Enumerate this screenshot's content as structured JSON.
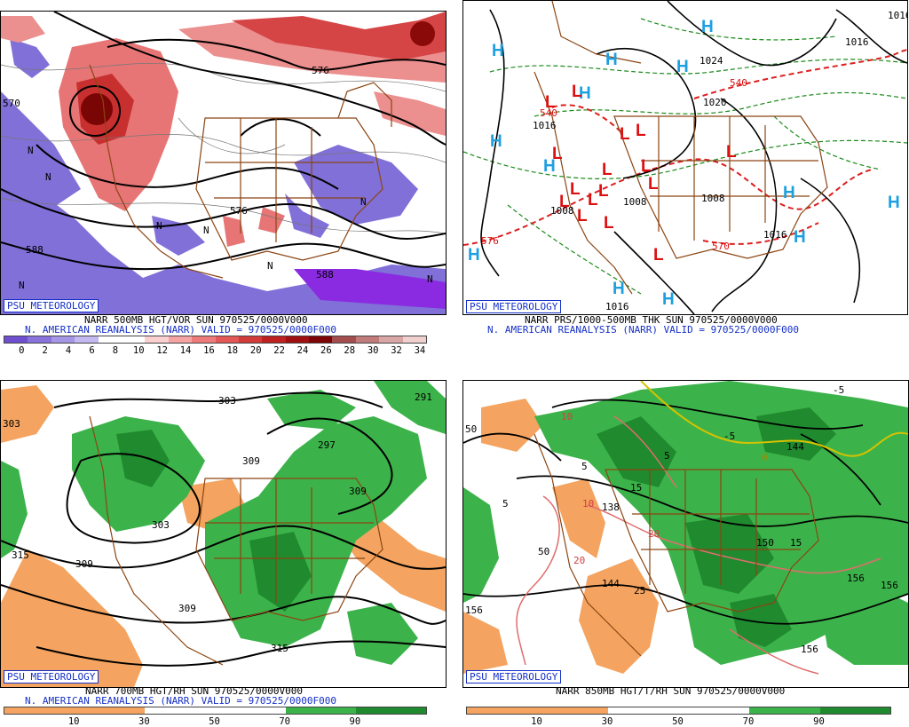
{
  "panels": [
    {
      "id": "p1",
      "logo": "PSU METEOROLOGY",
      "caption1": "NARR 500MB HGT/VOR SUN 970525/0000V000",
      "caption2": "N. AMERICAN REANALYSIS (NARR) VALID = 970525/0000F000",
      "colorbar": {
        "colors": [
          "#6f4fd0",
          "#8a72dc",
          "#a596e6",
          "#c3b8ef",
          "#ffffff",
          "#ffffff",
          "#fbd0d0",
          "#f5a3a3",
          "#ee7b7b",
          "#e35757",
          "#d33a3a",
          "#bf2020",
          "#a01010",
          "#7d0505",
          "#a34d4d",
          "#c27b7b",
          "#d9a6a6",
          "#f0cfcf"
        ],
        "ticks": [
          "0",
          "2",
          "4",
          "6",
          "8",
          "10",
          "12",
          "14",
          "16",
          "18",
          "20",
          "22",
          "24",
          "26",
          "28",
          "30",
          "32",
          "34"
        ]
      },
      "labels": [
        "576",
        "588",
        "570",
        "576",
        "588",
        "N",
        "N",
        "N",
        "N",
        "N",
        "N",
        "N",
        "N"
      ]
    },
    {
      "id": "p2",
      "logo": "PSU METEOROLOGY",
      "caption1": "NARR PRS/1000-500MB THK SUN 970525/0000V000",
      "caption2": "N. AMERICAN REANALYSIS (NARR) VALID = 970525/0000F000",
      "highs": [
        "H",
        "H",
        "H",
        "H",
        "H",
        "H",
        "H",
        "H",
        "H",
        "H",
        "H",
        "H",
        "H"
      ],
      "lows": [
        "L",
        "L",
        "L",
        "L",
        "L",
        "L",
        "L",
        "L",
        "L",
        "L",
        "L",
        "L",
        "L",
        "L",
        "L",
        "L"
      ],
      "labels": [
        "1024",
        "1020",
        "1016",
        "1016",
        "1008",
        "1008",
        "1016",
        "1008",
        "1016",
        "1016",
        "540",
        "540",
        "576",
        "570"
      ]
    },
    {
      "id": "p3",
      "logo": "PSU METEOROLOGY",
      "caption1": "NARR 700MB HGT/RH SUN 970525/0000V000",
      "caption2": "N. AMERICAN REANALYSIS (NARR) VALID = 970525/0000F000",
      "colorbar": {
        "colors": [
          "#f4a460",
          "#f4a460",
          "#ffffff",
          "#ffffff",
          "#3cb34a",
          "#1f8a2e"
        ],
        "ticks": [
          "10",
          "30",
          "50",
          "70",
          "90"
        ]
      },
      "labels": [
        "303",
        "297",
        "303",
        "309",
        "291",
        "309",
        "303",
        "309",
        "315",
        "315",
        "309"
      ]
    },
    {
      "id": "p4",
      "logo": "PSU METEOROLOGY",
      "caption1": "NARR 850MB HGT/T/RH SUN 970525/0000V000",
      "caption2": "",
      "colorbar": {
        "colors": [
          "#f4a460",
          "#f4a460",
          "#ffffff",
          "#ffffff",
          "#3cb34a",
          "#1f8a2e"
        ],
        "ticks": [
          "10",
          "30",
          "50",
          "70",
          "90"
        ]
      },
      "labels": [
        "-5",
        "-5",
        "5",
        "5",
        "5",
        "15",
        "15",
        "25",
        "10",
        "10",
        "20",
        "20",
        "0",
        "138",
        "144",
        "144",
        "150",
        "156",
        "156",
        "156",
        "156",
        "50",
        "50"
      ]
    }
  ]
}
